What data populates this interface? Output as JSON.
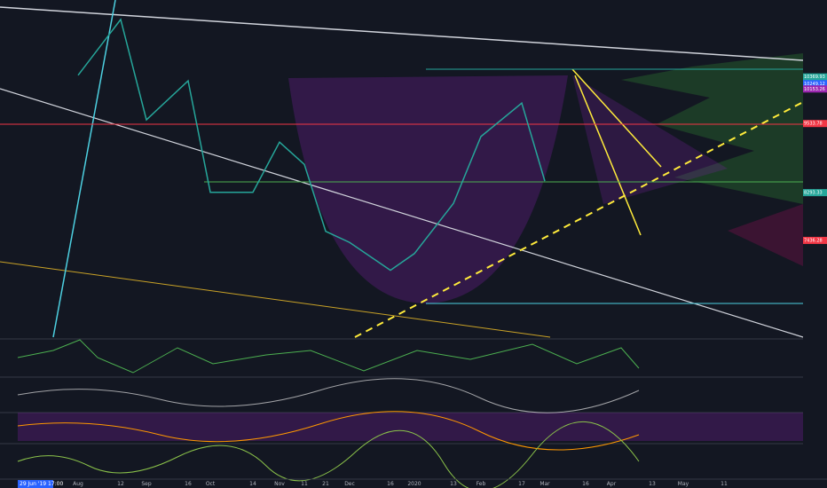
{
  "chart_data": {
    "type": "line",
    "crosshair_label": "29 Jun '19  17:00",
    "categories": [
      "Aug",
      "12",
      "Sep",
      "16",
      "Oct",
      "14",
      "Nov",
      "11",
      "21",
      "Dec",
      "16",
      "2020",
      "13",
      "Feb",
      "17",
      "Mar",
      "16",
      "Apr",
      "13",
      "May",
      "11"
    ],
    "series": [
      {
        "color": "#26a69a",
        "values": [
          10400,
          11400,
          9600,
          10300,
          8300,
          8300,
          9200,
          8800,
          7600,
          7400,
          6900,
          7200,
          8100,
          9300,
          9900,
          8500,
          null,
          null,
          null,
          null,
          null
        ]
      }
    ],
    "ylim": [
      5700,
      11750
    ],
    "price_labels": [
      {
        "value": 10369.93,
        "label": "10369.93",
        "color": "#26a69a"
      },
      {
        "value": 10249.12,
        "label": "10249.12",
        "color": "#2962ff"
      },
      {
        "value": 10153.26,
        "label": "10153.26",
        "color": "#9c27b0"
      },
      {
        "value": 9533.78,
        "label": "9533.78",
        "color": "#f23645"
      },
      {
        "value": 8293.33,
        "label": "8293.33",
        "color": "#26a69a"
      },
      {
        "value": 7436.28,
        "label": "7436.28",
        "color": "#f23645"
      }
    ]
  }
}
